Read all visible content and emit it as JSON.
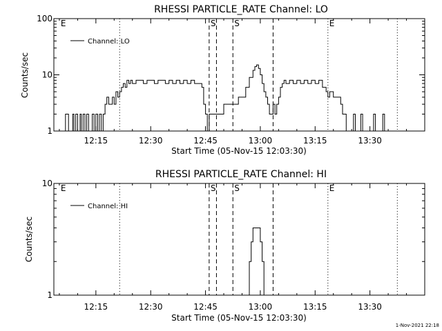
{
  "footer": {
    "timestamp": "1-Nov-2021 22:18"
  },
  "chart_data": [
    {
      "type": "line",
      "title": "RHESSI PARTICLE_RATE Channel: LO",
      "xlabel": "Start Time (05-Nov-15 12:03:30)",
      "ylabel": "Counts/sec",
      "yscale": "log",
      "xlim": [
        "12:03:30",
        "13:45:00"
      ],
      "ylim": [
        1,
        100
      ],
      "x_ticks": [
        "12:15",
        "12:30",
        "12:45",
        "13:00",
        "13:15",
        "13:30"
      ],
      "y_ticks": [
        "1",
        "10",
        "100"
      ],
      "legend": {
        "position": "top-left",
        "label": "Channel: LO"
      },
      "markers": [
        {
          "time": "12:05:00",
          "label": "E",
          "style": "none"
        },
        {
          "time": "12:21:30",
          "label": "",
          "style": "dotted"
        },
        {
          "time": "12:46:00",
          "label": "S",
          "style": "dashed"
        },
        {
          "time": "12:48:00",
          "label": "",
          "style": "dashed"
        },
        {
          "time": "12:52:30",
          "label": "S",
          "style": "dashed"
        },
        {
          "time": "13:03:30",
          "label": "",
          "style": "dashed"
        },
        {
          "time": "13:18:30",
          "label": "E",
          "style": "dotted"
        },
        {
          "time": "13:37:30",
          "label": "",
          "style": "dotted"
        }
      ],
      "series": [
        {
          "name": "Channel: LO",
          "points": [
            [
              "12:05:30",
              1
            ],
            [
              "12:06:30",
              1
            ],
            [
              "12:06:40",
              2
            ],
            [
              "12:07:30",
              1
            ],
            [
              "12:08:30",
              1
            ],
            [
              "12:08:40",
              2
            ],
            [
              "12:09:00",
              1
            ],
            [
              "12:09:30",
              2
            ],
            [
              "12:10:00",
              1
            ],
            [
              "12:10:30",
              1
            ],
            [
              "12:10:40",
              2
            ],
            [
              "12:11:00",
              1
            ],
            [
              "12:11:30",
              2
            ],
            [
              "12:12:00",
              1
            ],
            [
              "12:12:30",
              2
            ],
            [
              "12:13:00",
              1
            ],
            [
              "12:13:30",
              1
            ],
            [
              "12:14:00",
              2
            ],
            [
              "12:14:30",
              1
            ],
            [
              "12:15:00",
              2
            ],
            [
              "12:15:30",
              1
            ],
            [
              "12:16:00",
              2
            ],
            [
              "12:16:30",
              1
            ],
            [
              "12:17:00",
              2
            ],
            [
              "12:17:30",
              3
            ],
            [
              "12:18:00",
              4
            ],
            [
              "12:18:30",
              3
            ],
            [
              "12:19:00",
              3
            ],
            [
              "12:19:30",
              4
            ],
            [
              "12:20:00",
              3
            ],
            [
              "12:20:30",
              5
            ],
            [
              "12:21:00",
              4
            ],
            [
              "12:21:30",
              5
            ],
            [
              "12:22:00",
              6
            ],
            [
              "12:22:30",
              7
            ],
            [
              "12:23:00",
              6
            ],
            [
              "12:23:30",
              8
            ],
            [
              "12:24:00",
              7
            ],
            [
              "12:24:30",
              8
            ],
            [
              "12:25:00",
              7
            ],
            [
              "12:26:00",
              8
            ],
            [
              "12:27:00",
              8
            ],
            [
              "12:28:00",
              7
            ],
            [
              "12:29:00",
              8
            ],
            [
              "12:30:00",
              8
            ],
            [
              "12:31:00",
              7
            ],
            [
              "12:32:00",
              8
            ],
            [
              "12:33:00",
              8
            ],
            [
              "12:34:00",
              7
            ],
            [
              "12:35:00",
              8
            ],
            [
              "12:36:00",
              7
            ],
            [
              "12:37:00",
              8
            ],
            [
              "12:38:00",
              7
            ],
            [
              "12:39:00",
              8
            ],
            [
              "12:40:00",
              7
            ],
            [
              "12:41:00",
              8
            ],
            [
              "12:42:00",
              7
            ],
            [
              "12:43:00",
              7
            ],
            [
              "12:44:00",
              6
            ],
            [
              "12:44:30",
              3
            ],
            [
              "12:45:00",
              2
            ],
            [
              "12:45:30",
              1
            ],
            [
              "12:46:00",
              2
            ],
            [
              "12:47:00",
              2
            ],
            [
              "12:48:00",
              2
            ],
            [
              "12:49:00",
              2
            ],
            [
              "12:50:00",
              3
            ],
            [
              "12:51:00",
              3
            ],
            [
              "12:52:00",
              3
            ],
            [
              "12:53:00",
              3
            ],
            [
              "12:54:00",
              4
            ],
            [
              "12:55:00",
              4
            ],
            [
              "12:56:00",
              6
            ],
            [
              "12:57:00",
              9
            ],
            [
              "12:58:00",
              12
            ],
            [
              "12:58:30",
              14
            ],
            [
              "12:59:00",
              15
            ],
            [
              "12:59:30",
              13
            ],
            [
              "13:00:00",
              10
            ],
            [
              "13:00:30",
              7
            ],
            [
              "13:01:00",
              5
            ],
            [
              "13:01:30",
              4
            ],
            [
              "13:02:00",
              3
            ],
            [
              "13:02:30",
              2
            ],
            [
              "13:03:00",
              2
            ],
            [
              "13:03:30",
              3
            ],
            [
              "13:04:00",
              2
            ],
            [
              "13:04:30",
              3
            ],
            [
              "13:05:00",
              4
            ],
            [
              "13:05:30",
              6
            ],
            [
              "13:06:00",
              7
            ],
            [
              "13:06:30",
              8
            ],
            [
              "13:07:00",
              7
            ],
            [
              "13:08:00",
              8
            ],
            [
              "13:09:00",
              7
            ],
            [
              "13:10:00",
              8
            ],
            [
              "13:11:00",
              7
            ],
            [
              "13:12:00",
              8
            ],
            [
              "13:13:00",
              7
            ],
            [
              "13:14:00",
              8
            ],
            [
              "13:15:00",
              7
            ],
            [
              "13:16:00",
              8
            ],
            [
              "13:17:00",
              6
            ],
            [
              "13:18:00",
              5
            ],
            [
              "13:18:30",
              4
            ],
            [
              "13:19:00",
              5
            ],
            [
              "13:20:00",
              4
            ],
            [
              "13:21:00",
              4
            ],
            [
              "13:22:00",
              3
            ],
            [
              "13:22:30",
              2
            ],
            [
              "13:23:00",
              2
            ],
            [
              "13:23:30",
              1
            ],
            [
              "13:24:00",
              1
            ],
            [
              "13:25:00",
              1
            ],
            [
              "13:25:30",
              2
            ],
            [
              "13:26:00",
              1
            ],
            [
              "13:27:00",
              1
            ],
            [
              "13:27:30",
              2
            ],
            [
              "13:28:00",
              1
            ],
            [
              "13:30:00",
              1
            ],
            [
              "13:31:00",
              2
            ],
            [
              "13:31:30",
              1
            ],
            [
              "13:32:00",
              1
            ],
            [
              "13:33:00",
              1
            ],
            [
              "13:33:30",
              2
            ],
            [
              "13:34:00",
              1
            ]
          ]
        }
      ]
    },
    {
      "type": "line",
      "title": "RHESSI PARTICLE_RATE Channel: HI",
      "xlabel": "Start Time (05-Nov-15 12:03:30)",
      "ylabel": "Counts/sec",
      "yscale": "log",
      "xlim": [
        "12:03:30",
        "13:45:00"
      ],
      "ylim": [
        1,
        10
      ],
      "x_ticks": [
        "12:15",
        "12:30",
        "12:45",
        "13:00",
        "13:15",
        "13:30"
      ],
      "y_ticks": [
        "1",
        "10"
      ],
      "legend": {
        "position": "top-left",
        "label": "Channel: HI"
      },
      "markers": [
        {
          "time": "12:05:00",
          "label": "E",
          "style": "none"
        },
        {
          "time": "12:21:30",
          "label": "",
          "style": "dotted"
        },
        {
          "time": "12:46:00",
          "label": "S",
          "style": "dashed"
        },
        {
          "time": "12:48:00",
          "label": "",
          "style": "dashed"
        },
        {
          "time": "12:52:30",
          "label": "S",
          "style": "dashed"
        },
        {
          "time": "13:03:30",
          "label": "",
          "style": "dashed"
        },
        {
          "time": "13:18:30",
          "label": "E",
          "style": "dotted"
        },
        {
          "time": "13:37:30",
          "label": "",
          "style": "dotted"
        }
      ],
      "series": [
        {
          "name": "Channel: HI",
          "points": [
            [
              "12:56:30",
              1
            ],
            [
              "12:57:00",
              2
            ],
            [
              "12:57:30",
              3
            ],
            [
              "12:58:00",
              4
            ],
            [
              "12:59:00",
              4
            ],
            [
              "12:59:30",
              4
            ],
            [
              "13:00:00",
              3
            ],
            [
              "13:00:30",
              2
            ],
            [
              "13:01:00",
              1
            ]
          ]
        }
      ]
    }
  ]
}
